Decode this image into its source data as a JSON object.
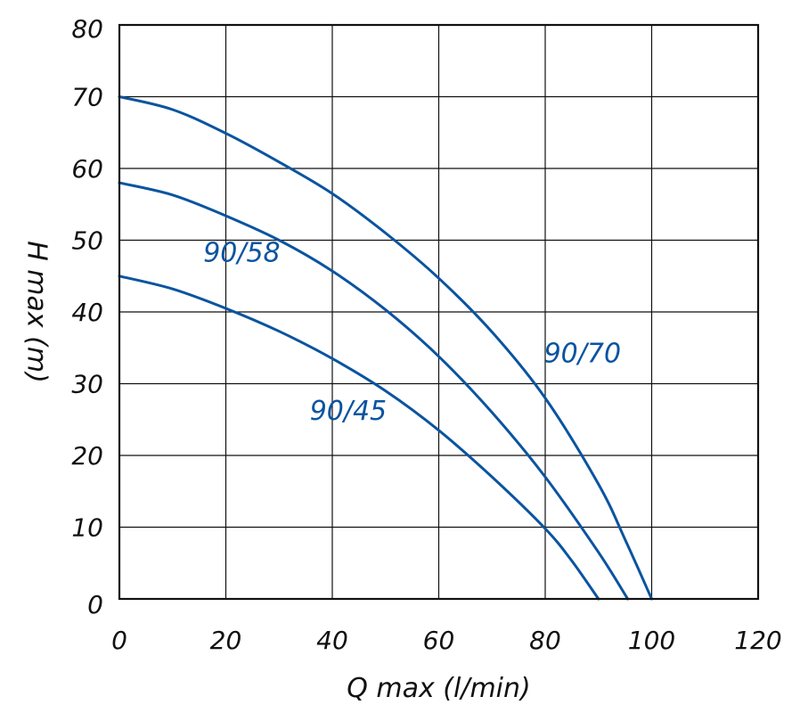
{
  "chart_data": {
    "type": "line",
    "title": "",
    "xlabel": "Q max (l/min)",
    "ylabel": "H max (m)",
    "xlim": [
      0,
      120
    ],
    "ylim": [
      0,
      80
    ],
    "xticks": [
      "0",
      "20",
      "40",
      "60",
      "80",
      "100",
      "120"
    ],
    "yticks": [
      "0",
      "10",
      "20",
      "30",
      "40",
      "50",
      "60",
      "70",
      "80"
    ],
    "grid": true,
    "legend": "none",
    "series_color": "#0a54a0",
    "series": [
      {
        "name": "90/70",
        "x": [
          0,
          10,
          20,
          30,
          40,
          50,
          60,
          70,
          80,
          90,
          95,
          100
        ],
        "y": [
          70,
          68.2,
          64.9,
          60.9,
          56.5,
          51.0,
          44.7,
          37.2,
          28.0,
          16.0,
          8.3,
          0
        ]
      },
      {
        "name": "90/58",
        "x": [
          0,
          10,
          20,
          30,
          40,
          50,
          60,
          70,
          80,
          90,
          95.5
        ],
        "y": [
          58,
          56.3,
          53.4,
          50.0,
          45.7,
          40.3,
          33.8,
          26.0,
          17.0,
          6.5,
          0
        ]
      },
      {
        "name": "90/45",
        "x": [
          0,
          10,
          20,
          30,
          40,
          50,
          60,
          70,
          80,
          85,
          90
        ],
        "y": [
          45,
          43.2,
          40.5,
          37.3,
          33.5,
          29.0,
          23.5,
          17.0,
          9.8,
          5.3,
          0
        ]
      }
    ],
    "annotations": [
      {
        "text": "90/70",
        "x": 87,
        "y": 33
      },
      {
        "text": "90/58",
        "x": 23,
        "y": 47
      },
      {
        "text": "90/45",
        "x": 43,
        "y": 25
      }
    ]
  }
}
